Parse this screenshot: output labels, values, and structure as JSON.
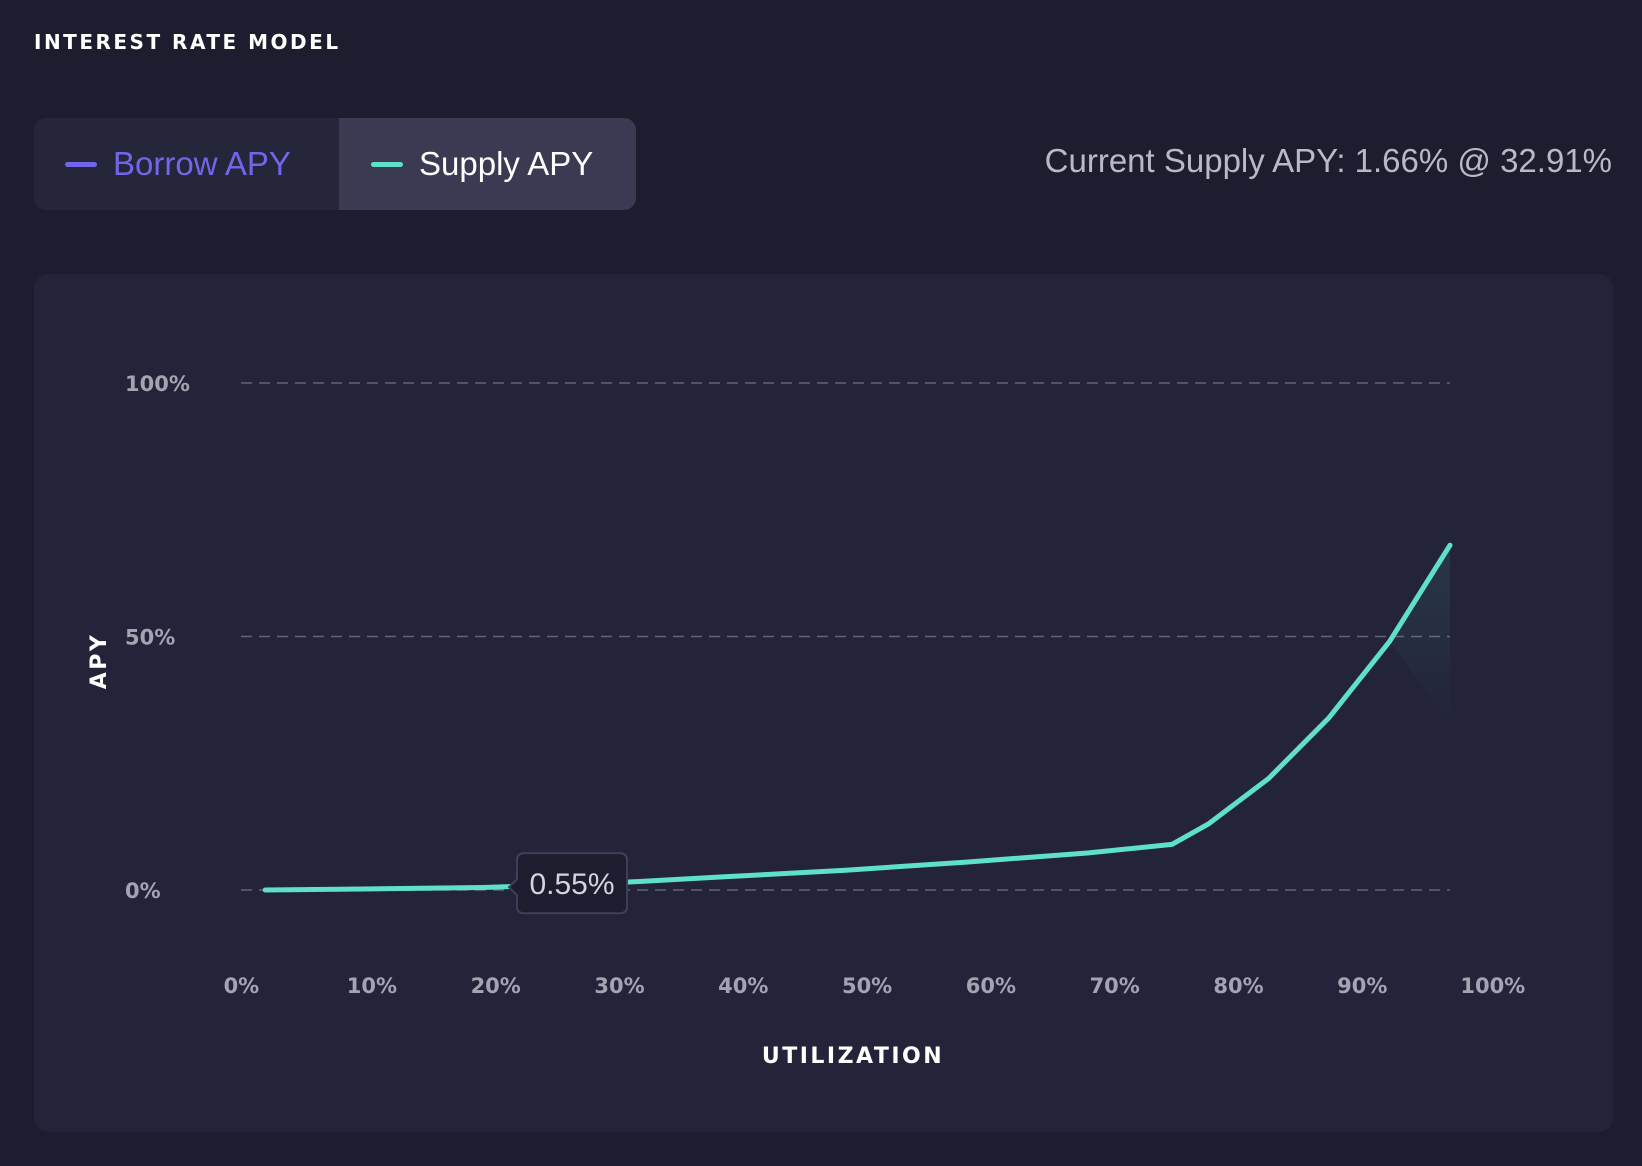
{
  "header": {
    "title": "INTEREST RATE MODEL"
  },
  "toggles": [
    {
      "label": "Borrow APY",
      "color": "#7166e9",
      "active": false
    },
    {
      "label": "Supply APY",
      "color": "#5fe0c9",
      "active": true
    }
  ],
  "current_apy_text": "Current Supply APY: 1.66% @ 32.91%",
  "tooltip": {
    "label": "0.55%",
    "x": 22,
    "y": 0.55
  },
  "colors": {
    "background": "#1c1d2e",
    "card": "#23243a",
    "supply_line": "#5fe0c9",
    "borrow_line": "#7166e9",
    "grid": "#62637a"
  },
  "chart_data": {
    "type": "line",
    "title": "",
    "xlabel": "UTILIZATION",
    "ylabel": "APY",
    "xlim": [
      0,
      100
    ],
    "ylim": [
      0,
      100
    ],
    "x_ticks": [
      "0%",
      "10%",
      "20%",
      "30%",
      "40%",
      "50%",
      "60%",
      "70%",
      "80%",
      "90%",
      "100%"
    ],
    "y_ticks": [
      "0%",
      "50%",
      "100%"
    ],
    "grid": true,
    "series": [
      {
        "name": "Supply APY",
        "x": [
          2,
          10,
          20,
          30,
          40,
          50,
          60,
          70,
          77,
          80,
          85,
          90,
          95,
          100
        ],
        "y": [
          0.0,
          0.2,
          0.5,
          1.3,
          2.6,
          3.9,
          5.5,
          7.3,
          9.0,
          13.0,
          22.0,
          34.0,
          49.0,
          68.0
        ]
      }
    ]
  }
}
